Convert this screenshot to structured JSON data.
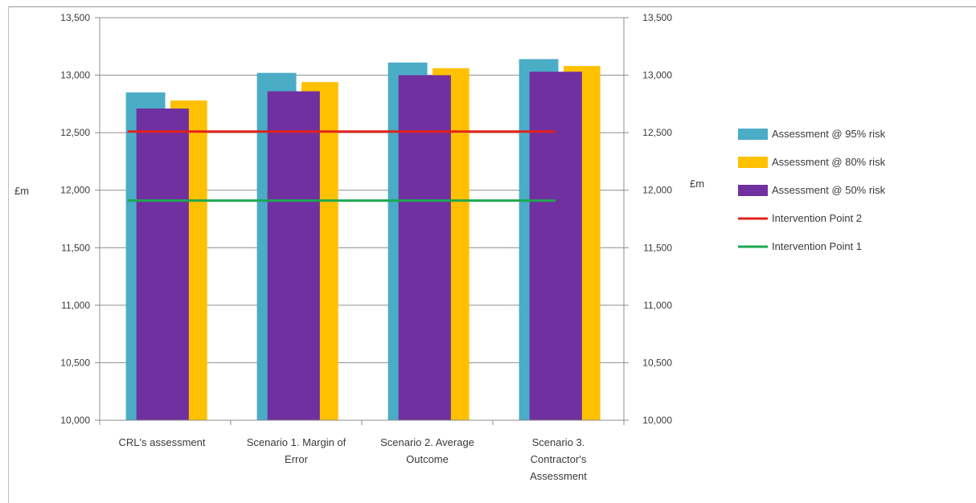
{
  "chart_data": {
    "type": "bar",
    "ylabel_left": "£m",
    "ylabel_right": "£m",
    "ylim": [
      10000,
      13500
    ],
    "yticks": [
      10000,
      10500,
      11000,
      11500,
      12000,
      12500,
      13000,
      13500
    ],
    "ytick_labels": [
      "10,000",
      "10,500",
      "11,000",
      "11,500",
      "12,000",
      "12,500",
      "13,000",
      "13,500"
    ],
    "grid": true,
    "legend_position": "right",
    "categories": [
      [
        "CRL's assessment"
      ],
      [
        "Scenario 1. Margin of",
        "Error"
      ],
      [
        "Scenario 2. Average",
        "Outcome"
      ],
      [
        "Scenario 3.",
        "Contractor's",
        "Assessment"
      ]
    ],
    "series": [
      {
        "name": "Assessment @ 95% risk",
        "color": "#4BACC6",
        "values": [
          12850,
          13020,
          13110,
          13140
        ]
      },
      {
        "name": "Assessment @ 80% risk",
        "color": "#FFC000",
        "values": [
          12780,
          12940,
          13060,
          13080
        ]
      },
      {
        "name": "Assessment @ 50% risk",
        "color": "#7030A0",
        "values": [
          12710,
          12860,
          13000,
          13030
        ]
      }
    ],
    "lines": [
      {
        "name": "Intervention Point 2",
        "color": "#E2231A",
        "value": 12510
      },
      {
        "name": "Intervention Point 1",
        "color": "#1DA851",
        "value": 11910
      }
    ]
  }
}
